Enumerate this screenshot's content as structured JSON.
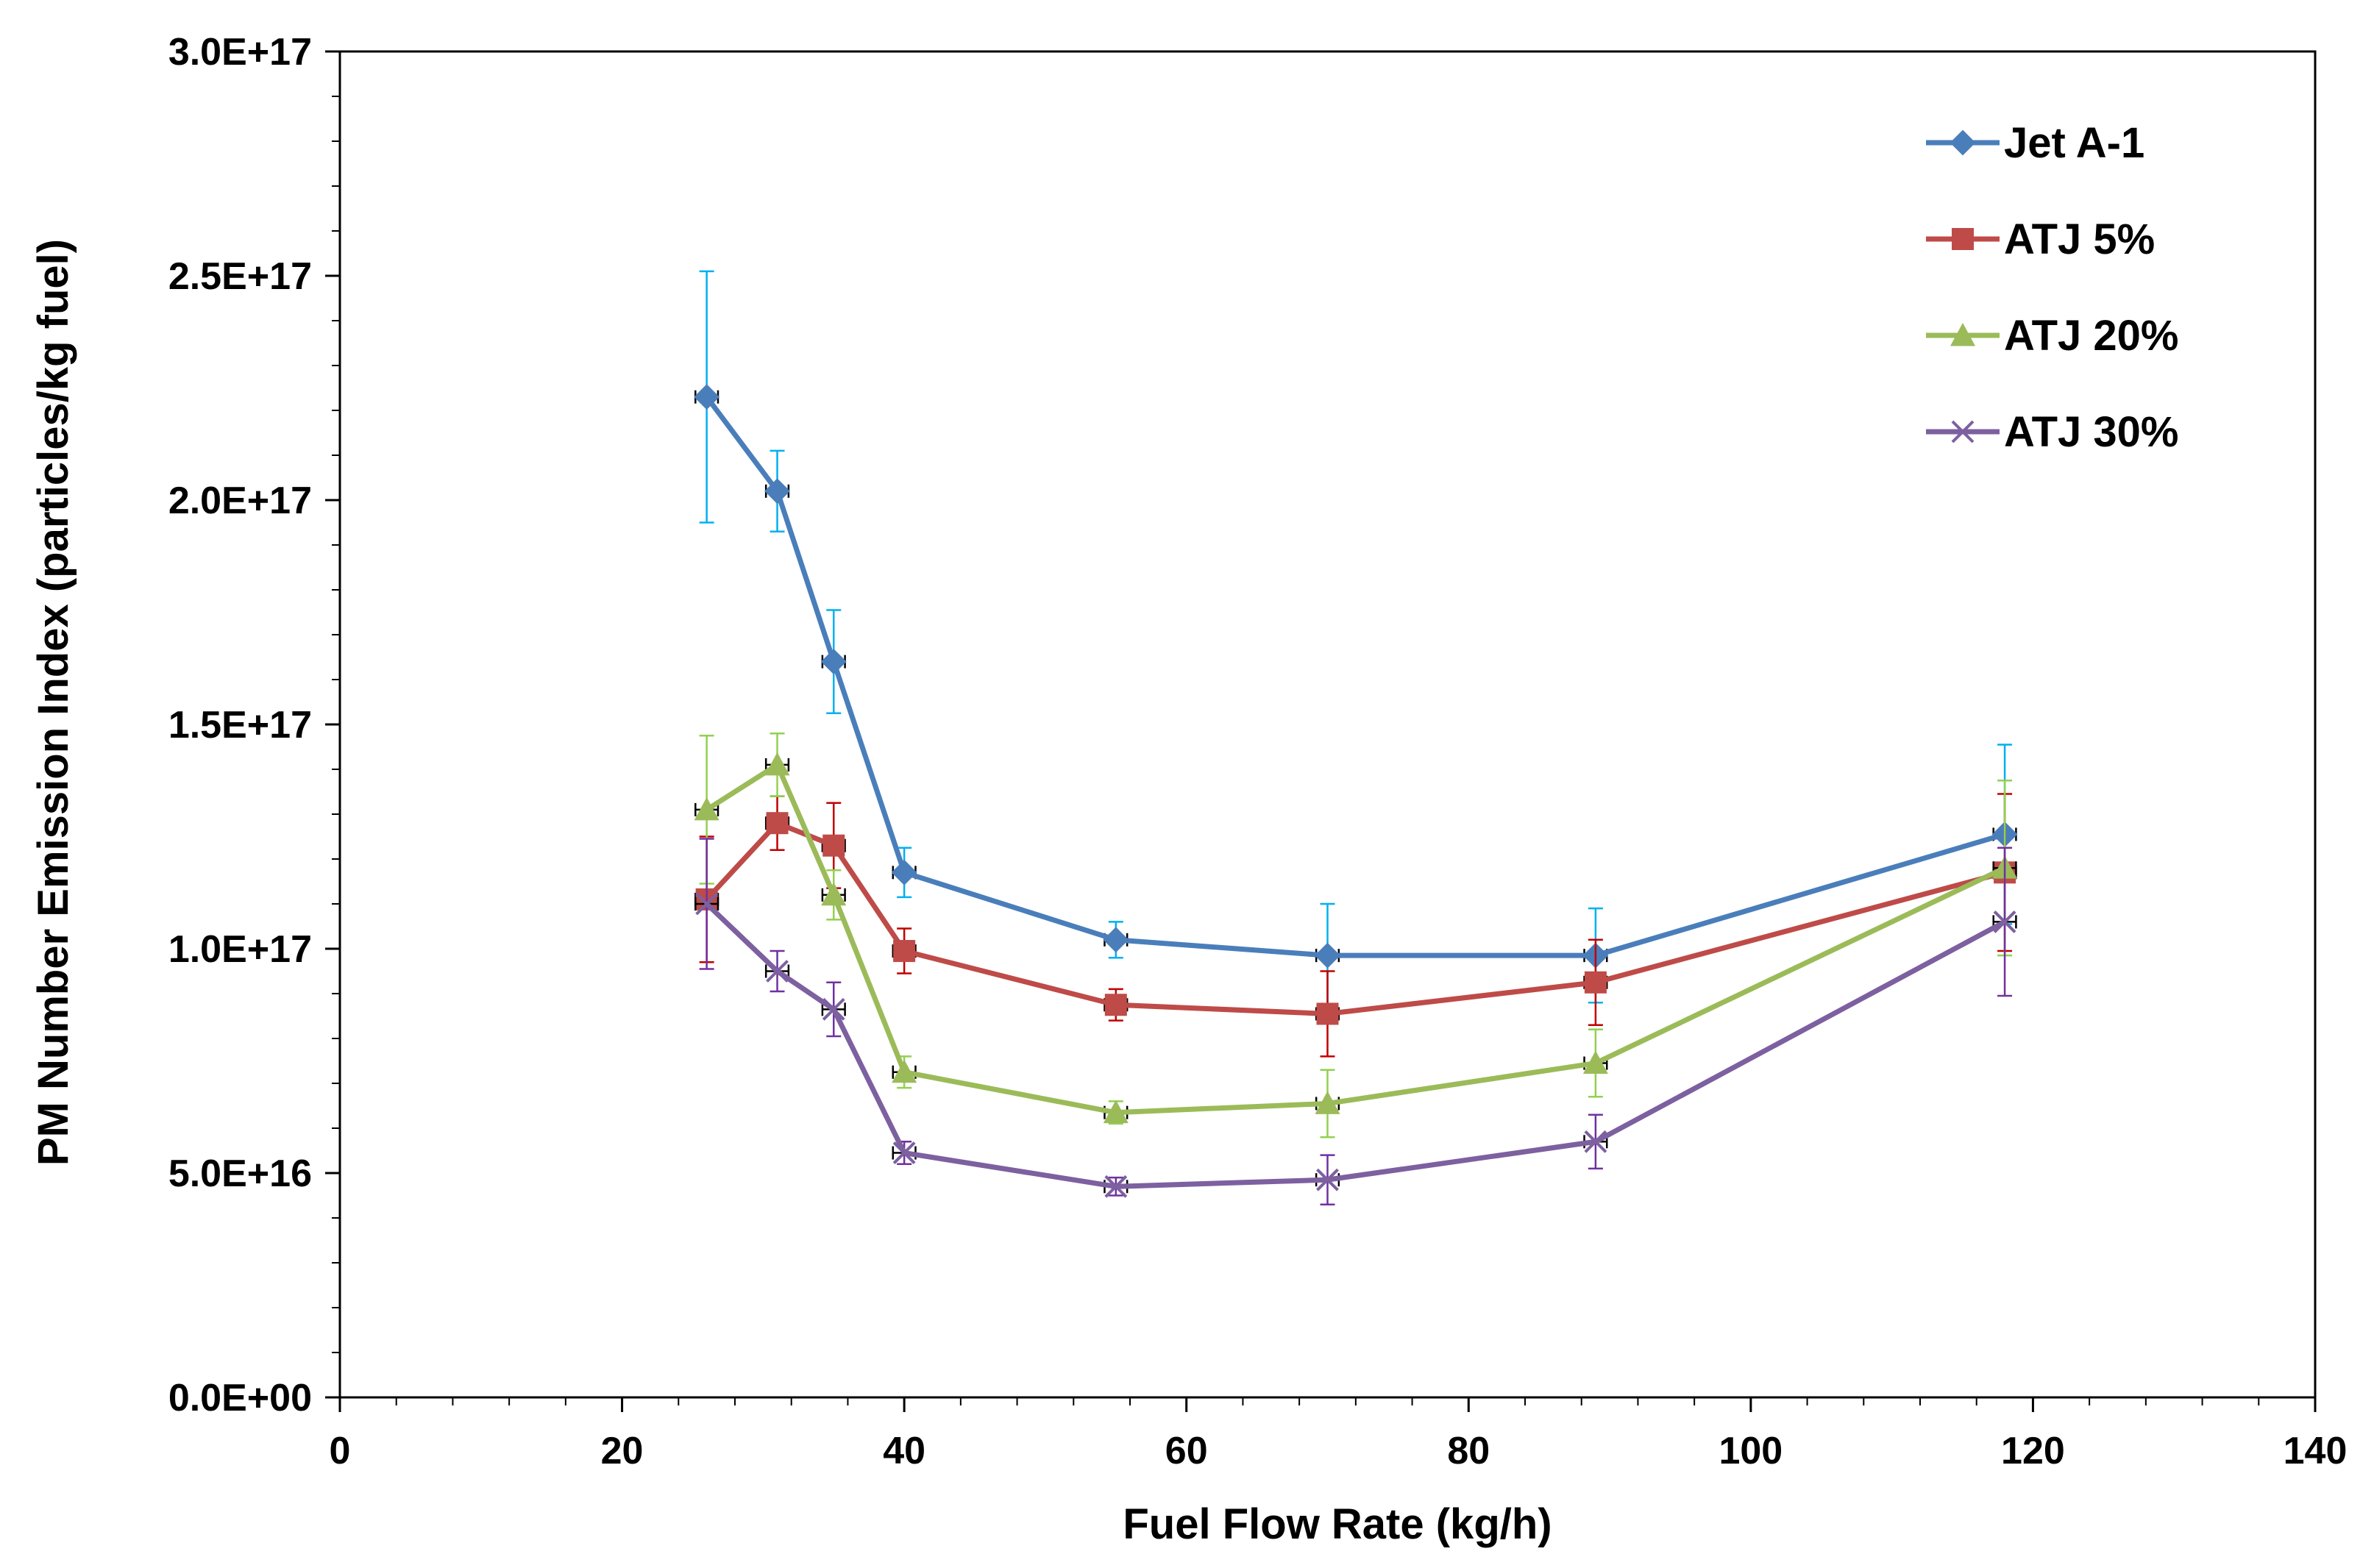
{
  "chart_data": {
    "type": "line",
    "title": "",
    "xlabel": "Fuel Flow Rate (kg/h)",
    "ylabel": "PM Number Emission Index (particles/kg fuel)",
    "xlim": [
      0,
      140
    ],
    "ylim": [
      0,
      3e+17
    ],
    "x_ticks": [
      0,
      20,
      40,
      60,
      80,
      100,
      120,
      140
    ],
    "x_tick_labels": [
      "0",
      "20",
      "40",
      "60",
      "80",
      "100",
      "120",
      "140"
    ],
    "y_ticks": [
      0,
      5e+16,
      1e+17,
      1.5e+17,
      2e+17,
      2.5e+17,
      3e+17
    ],
    "y_tick_labels": [
      "0.0E+00",
      "5.0E+16",
      "1.0E+17",
      "1.5E+17",
      "2.0E+17",
      "2.5E+17",
      "3.0E+17"
    ],
    "grid": false,
    "legend_position": "top-right",
    "x_error": 0.8,
    "series": [
      {
        "name": "Jet A-1",
        "color": "#4a7ebb",
        "error_color": "#00b0f0",
        "marker": "diamond",
        "x": [
          26,
          31,
          35,
          40,
          55,
          70,
          89,
          118
        ],
        "values": [
          2.23e+17,
          2.02e+17,
          1.64e+17,
          1.17e+17,
          1.02e+17,
          9.85e+16,
          9.85e+16,
          1.255e+17
        ],
        "y_error": [
          2.8e+16,
          9000000000000000.0,
          1.15e+16,
          5500000000000000.0,
          4000000000000000.0,
          1.15e+16,
          1.05e+16,
          2e+16
        ]
      },
      {
        "name": "ATJ 5%",
        "color": "#be4b48",
        "error_color": "#c00000",
        "marker": "square",
        "x": [
          26,
          31,
          35,
          40,
          55,
          70,
          89,
          118
        ],
        "values": [
          1.11e+17,
          1.28e+17,
          1.23e+17,
          9.95e+16,
          8.75e+16,
          8.55e+16,
          9.25e+16,
          1.17e+17
        ],
        "y_error": [
          1.4e+16,
          6000000000000000.0,
          9500000000000000.0,
          5000000000000000.0,
          3500000000000000.0,
          9500000000000000.0,
          9500000000000000.0,
          1.75e+16
        ]
      },
      {
        "name": "ATJ 20%",
        "color": "#9bbb59",
        "error_color": "#92d050",
        "marker": "triangle",
        "x": [
          26,
          31,
          35,
          40,
          55,
          70,
          89,
          118
        ],
        "values": [
          1.31e+17,
          1.41e+17,
          1.12e+17,
          7.25e+16,
          6.35e+16,
          6.55e+16,
          7.45e+16,
          1.18e+17
        ],
        "y_error": [
          1.65e+16,
          7000000000000000.0,
          5500000000000000.0,
          3500000000000000.0,
          2500000000000000.0,
          7500000000000000.0,
          7500000000000000.0,
          1.95e+16
        ]
      },
      {
        "name": "ATJ 30%",
        "color": "#7d60a0",
        "error_color": "#7030a0",
        "marker": "x",
        "x": [
          26,
          31,
          35,
          40,
          55,
          70,
          89,
          118
        ],
        "values": [
          1.1e+17,
          9.5e+16,
          8.65e+16,
          5.45e+16,
          4.7e+16,
          4.85e+16,
          5.7e+16,
          1.06e+17
        ],
        "y_error": [
          1.45e+16,
          4500000000000000.0,
          6000000000000000.0,
          2500000000000000.0,
          2000000000000000.0,
          5500000000000000.0,
          6000000000000000.0,
          1.65e+16
        ]
      }
    ]
  }
}
